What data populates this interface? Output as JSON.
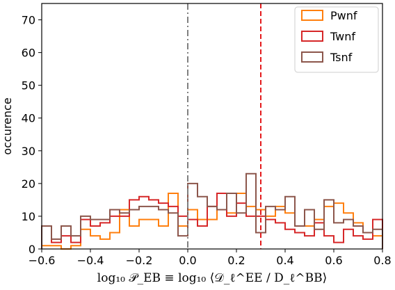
{
  "chart_data": {
    "type": "histogram",
    "xlabel": "log₁₀ 𝒫_EB ≡ log₁₀ ⟨𝒟_ℓ^EE / D_ℓ^BB⟩",
    "ylabel": "occurence",
    "xlim": [
      -0.6,
      0.8
    ],
    "ylim": [
      0,
      75
    ],
    "xticks": [
      "−0.6",
      "−0.4",
      "−0.2",
      "0.0",
      "0.2",
      "0.4",
      "0.6",
      "0.8"
    ],
    "xtick_values": [
      -0.6,
      -0.4,
      -0.2,
      0.0,
      0.2,
      0.4,
      0.6,
      0.8
    ],
    "yticks": [
      "0",
      "10",
      "20",
      "30",
      "40",
      "50",
      "60",
      "70"
    ],
    "ytick_values": [
      0,
      10,
      20,
      30,
      40,
      50,
      60,
      70
    ],
    "legend_position": "top-right",
    "grid": false,
    "bin_edges": [
      -0.6,
      -0.56,
      -0.52,
      -0.48,
      -0.44,
      -0.4,
      -0.36,
      -0.32,
      -0.28,
      -0.24,
      -0.2,
      -0.16,
      -0.12,
      -0.08,
      -0.04,
      0.0,
      0.04,
      0.08,
      0.12,
      0.16,
      0.2,
      0.24,
      0.28,
      0.32,
      0.36,
      0.4,
      0.44,
      0.48,
      0.52,
      0.56,
      0.6,
      0.64,
      0.68,
      0.72,
      0.76,
      0.8
    ],
    "series": [
      {
        "name": "Pwnf",
        "color": "#ff7f0e",
        "counts": [
          1,
          1,
          0,
          1,
          6,
          4,
          3,
          5,
          12,
          7,
          9,
          9,
          7,
          17,
          7,
          12,
          9,
          9,
          17,
          11,
          17,
          13,
          12,
          10,
          13,
          11,
          7,
          7,
          9,
          13,
          14,
          11,
          8,
          5,
          4
        ]
      },
      {
        "name": "Twnf",
        "color": "#d62728",
        "counts": [
          7,
          2,
          4,
          2,
          9,
          7,
          8,
          10,
          10,
          15,
          16,
          15,
          14,
          13,
          10,
          9,
          7,
          13,
          17,
          10,
          14,
          10,
          10,
          9,
          8,
          6,
          5,
          4,
          8,
          4,
          2,
          6,
          4,
          3,
          9
        ]
      },
      {
        "name": "Tsnf",
        "color": "#8c564b",
        "counts": [
          7,
          3,
          7,
          4,
          10,
          9,
          9,
          12,
          11,
          12,
          13,
          13,
          12,
          11,
          4,
          20,
          16,
          13,
          12,
          17,
          11,
          23,
          5,
          13,
          12,
          16,
          7,
          12,
          6,
          15,
          8,
          9,
          7,
          5,
          6
        ]
      }
    ],
    "vertical_lines": [
      {
        "x": 0.0,
        "color": "#7f7f7f",
        "style": "dashdot"
      },
      {
        "x": 0.3,
        "color": "#e41a1c",
        "style": "dashed"
      }
    ]
  }
}
